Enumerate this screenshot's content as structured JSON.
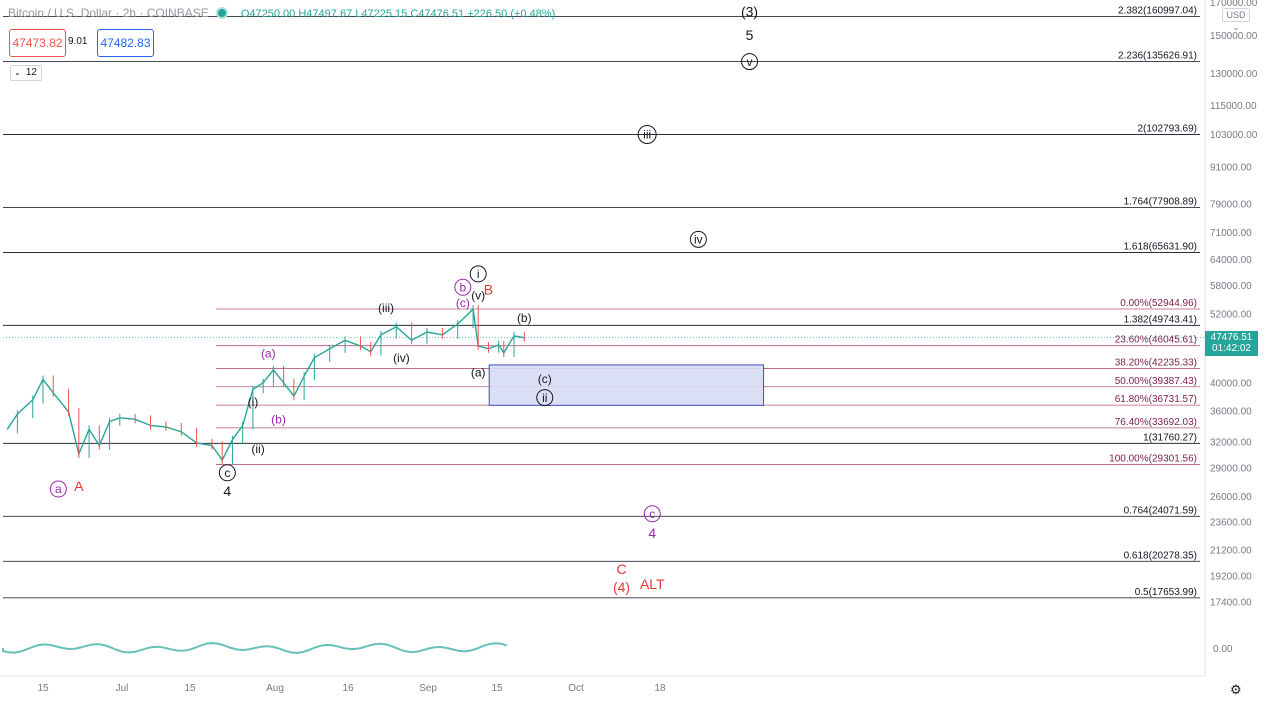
{
  "header": {
    "symbol": "Bitcoin / U.S. Dollar · 2h · COINBASE",
    "open": "O47250.00",
    "high": "H47497.67",
    "low": "L47225.15",
    "close": "C47476.51",
    "change": "+226.50 (+0.48%)",
    "sell_price": "47473.82",
    "spread": "9.01",
    "buy_price": "47482.83",
    "quantity": "12",
    "currency": "USD"
  },
  "last_price": {
    "value": "47476.51",
    "countdown": "01:42:02"
  },
  "colors": {
    "up": "#26a69a",
    "down": "#ef5350",
    "fib_line": "#b2597a",
    "wave_black": "#131722",
    "wave_purple": "#9c27b0",
    "wave_red": "#e53935",
    "box_fill": "#d6dcf5",
    "box_stroke": "#3d4cc4"
  },
  "chart_data": {
    "type": "line",
    "title": "Bitcoin / U.S. Dollar · 2h · COINBASE",
    "xlabel": "",
    "ylabel": "",
    "y_scale": "log",
    "ylim": [
      17000,
      175000
    ],
    "grid": false,
    "x_ticks": [
      "15",
      "Jul",
      "15",
      "Aug",
      "16",
      "Sep",
      "15",
      "Oct",
      "18"
    ],
    "y_ticks": [
      "170000.00",
      "150000.00",
      "130000.00",
      "115000.00",
      "103000.00",
      "91000.00",
      "79000.00",
      "71000.00",
      "64000.00",
      "58000.00",
      "52000.00",
      "46000.00",
      "40000.00",
      "36000.00",
      "32000.00",
      "29000.00",
      "26000.00",
      "23600.00",
      "21200.00",
      "19200.00",
      "17400.00"
    ],
    "series": [
      {
        "values": [
          [
            "2021-06-08",
            33500
          ],
          [
            "2021-06-10",
            35500
          ],
          [
            "2021-06-13",
            37500
          ],
          [
            "2021-06-15",
            40500
          ],
          [
            "2021-06-17",
            38500
          ],
          [
            "2021-06-20",
            35800
          ],
          [
            "2021-06-22",
            30500
          ],
          [
            "2021-06-24",
            33500
          ],
          [
            "2021-06-26",
            31500
          ],
          [
            "2021-06-28",
            34500
          ],
          [
            "2021-06-30",
            35000
          ],
          [
            "2021-07-03",
            34800
          ],
          [
            "2021-07-06",
            34000
          ],
          [
            "2021-07-09",
            33800
          ],
          [
            "2021-07-12",
            33200
          ],
          [
            "2021-07-15",
            31800
          ],
          [
            "2021-07-18",
            31500
          ],
          [
            "2021-07-20",
            29800
          ],
          [
            "2021-07-22",
            32200
          ],
          [
            "2021-07-24",
            34000
          ],
          [
            "2021-07-26",
            39000
          ],
          [
            "2021-07-28",
            40000
          ],
          [
            "2021-07-30",
            42000
          ],
          [
            "2021-08-01",
            40000
          ],
          [
            "2021-08-03",
            38000
          ],
          [
            "2021-08-05",
            41000
          ],
          [
            "2021-08-07",
            44000
          ],
          [
            "2021-08-10",
            45500
          ],
          [
            "2021-08-13",
            47000
          ],
          [
            "2021-08-16",
            46000
          ],
          [
            "2021-08-18",
            45000
          ],
          [
            "2021-08-20",
            48000
          ],
          [
            "2021-08-23",
            49500
          ],
          [
            "2021-08-26",
            47000
          ],
          [
            "2021-08-29",
            48500
          ],
          [
            "2021-09-01",
            48000
          ],
          [
            "2021-09-04",
            50000
          ],
          [
            "2021-09-07",
            52900
          ],
          [
            "2021-09-08",
            46000
          ],
          [
            "2021-09-10",
            45500
          ],
          [
            "2021-09-12",
            46200
          ],
          [
            "2021-09-13",
            44800
          ],
          [
            "2021-09-15",
            47800
          ],
          [
            "2021-09-17",
            47476
          ]
        ]
      }
    ],
    "fib_levels": [
      {
        "label": "2.382(160997.04)",
        "value": 160997.04
      },
      {
        "label": "2.236(135626.91)",
        "value": 135626.91
      },
      {
        "label": "2(102793.69)",
        "value": 102793.69
      },
      {
        "label": "1.764(77908.89)",
        "value": 77908.89
      },
      {
        "label": "1.618(65631.90)",
        "value": 65631.9
      },
      {
        "label": "0.00%(52944.96)",
        "value": 52944.96
      },
      {
        "label": "1.382(49743.41)",
        "value": 49743.41
      },
      {
        "label": "23.60%(46045.61)",
        "value": 46045.61
      },
      {
        "label": "38.20%(42235.33)",
        "value": 42235.33
      },
      {
        "label": "50.00%(39387.43)",
        "value": 39387.43
      },
      {
        "label": "61.80%(36731.57)",
        "value": 36731.57
      },
      {
        "label": "76.40%(33692.03)",
        "value": 33692.03
      },
      {
        "label": "1(31760.27)",
        "value": 31760.27
      },
      {
        "label": "100.00%(29301.56)",
        "value": 29301.56
      },
      {
        "label": "0.764(24071.59)",
        "value": 24071.59
      },
      {
        "label": "0.618(20278.35)",
        "value": 20278.35
      },
      {
        "label": "0.5(17653.99)",
        "value": 17653.99
      }
    ],
    "annotations": [
      {
        "text": "(3)",
        "date": "2021-10-31",
        "price": 164000,
        "color": "black"
      },
      {
        "text": "5",
        "date": "2021-10-31",
        "price": 150000,
        "color": "black"
      },
      {
        "text": "v",
        "date": "2021-10-31",
        "price": 135626,
        "color": "black",
        "circled": true
      },
      {
        "text": "iii",
        "date": "2021-10-11",
        "price": 102793,
        "color": "black",
        "circled": true
      },
      {
        "text": "iv",
        "date": "2021-10-21",
        "price": 69000,
        "color": "black",
        "circled": true
      },
      {
        "text": "i",
        "date": "2021-09-08",
        "price": 60500,
        "color": "black",
        "circled": true
      },
      {
        "text": "(v)",
        "date": "2021-09-08",
        "price": 55800,
        "color": "black"
      },
      {
        "text": "B",
        "date": "2021-09-10",
        "price": 57000,
        "color": "red"
      },
      {
        "text": "b",
        "date": "2021-09-05",
        "price": 57500,
        "color": "purple",
        "circled": true
      },
      {
        "text": "(c)",
        "date": "2021-09-05",
        "price": 54200,
        "color": "purple"
      },
      {
        "text": "(iii)",
        "date": "2021-08-21",
        "price": 53200,
        "color": "black"
      },
      {
        "text": "(b)",
        "date": "2021-09-17",
        "price": 51200,
        "color": "black"
      },
      {
        "text": "(iv)",
        "date": "2021-08-24",
        "price": 44000,
        "color": "black"
      },
      {
        "text": "(a)",
        "date": "2021-09-08",
        "price": 41600,
        "color": "black"
      },
      {
        "text": "(c)",
        "date": "2021-09-21",
        "price": 40600,
        "color": "black"
      },
      {
        "text": "ii",
        "date": "2021-09-21",
        "price": 37800,
        "color": "black",
        "circled": true
      },
      {
        "text": "(a)",
        "date": "2021-07-29",
        "price": 44700,
        "color": "purple"
      },
      {
        "text": "(i)",
        "date": "2021-07-26",
        "price": 37200,
        "color": "black"
      },
      {
        "text": "(b)",
        "date": "2021-07-31",
        "price": 34800,
        "color": "purple"
      },
      {
        "text": "(ii)",
        "date": "2021-07-27",
        "price": 31100,
        "color": "black"
      },
      {
        "text": "c",
        "date": "2021-07-21",
        "price": 28400,
        "color": "black",
        "circled": true
      },
      {
        "text": "4",
        "date": "2021-07-21",
        "price": 26500,
        "color": "black"
      },
      {
        "text": "a",
        "date": "2021-06-18",
        "price": 26700,
        "color": "purple",
        "circled": true
      },
      {
        "text": "A",
        "date": "2021-06-22",
        "price": 27000,
        "color": "red"
      },
      {
        "text": "c",
        "date": "2021-10-12",
        "price": 24300,
        "color": "purple",
        "circled": true
      },
      {
        "text": "4",
        "date": "2021-10-12",
        "price": 22600,
        "color": "purple"
      },
      {
        "text": "C",
        "date": "2021-10-06",
        "price": 19700,
        "color": "red"
      },
      {
        "text": "(4)",
        "date": "2021-10-06",
        "price": 18400,
        "color": "red"
      },
      {
        "text": "ALT",
        "date": "2021-10-12",
        "price": 18600,
        "color": "red"
      }
    ],
    "zone": {
      "from_date": "2021-09-08",
      "to_date": "2021-10-06",
      "top": 42800,
      "bottom": 36700
    }
  }
}
